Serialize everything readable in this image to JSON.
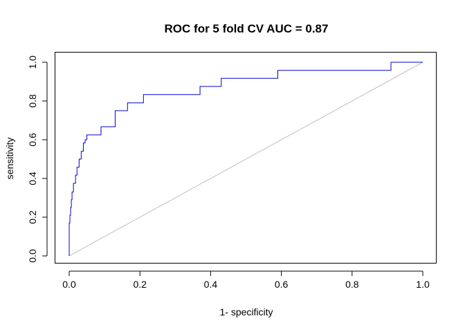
{
  "chart_data": {
    "type": "line",
    "title": "ROC for 5 fold CV  AUC = 0.87",
    "xlabel": "1- specificity",
    "ylabel": "sensitivity",
    "xlim": [
      0,
      1
    ],
    "ylim": [
      0,
      1
    ],
    "xticks": [
      "0.0",
      "0.2",
      "0.4",
      "0.6",
      "0.8",
      "1.0"
    ],
    "yticks": [
      "0.0",
      "0.2",
      "0.4",
      "0.6",
      "0.8",
      "1.0"
    ],
    "grid": false,
    "legend": "none",
    "series": [
      {
        "color": "#0000cc",
        "style": "step",
        "x": [
          0.0,
          0.0,
          0.002,
          0.002,
          0.004,
          0.004,
          0.006,
          0.006,
          0.008,
          0.008,
          0.012,
          0.012,
          0.018,
          0.018,
          0.022,
          0.022,
          0.028,
          0.028,
          0.034,
          0.034,
          0.04,
          0.04,
          0.045,
          0.045,
          0.05,
          0.05,
          0.09,
          0.09,
          0.13,
          0.13,
          0.165,
          0.165,
          0.21,
          0.21,
          0.37,
          0.37,
          0.43,
          0.43,
          0.59,
          0.59,
          0.91,
          0.91,
          1.0
        ],
        "y": [
          0.0,
          0.17,
          0.17,
          0.21,
          0.21,
          0.25,
          0.25,
          0.29,
          0.29,
          0.33,
          0.33,
          0.375,
          0.375,
          0.417,
          0.417,
          0.458,
          0.458,
          0.5,
          0.5,
          0.54,
          0.54,
          0.583,
          0.583,
          0.6,
          0.6,
          0.625,
          0.625,
          0.667,
          0.667,
          0.75,
          0.75,
          0.79,
          0.79,
          0.833,
          0.833,
          0.875,
          0.875,
          0.917,
          0.917,
          0.958,
          0.958,
          1.0,
          1.0
        ]
      },
      {
        "color": "#bebebe",
        "style": "line",
        "x": [
          0,
          1
        ],
        "y": [
          0,
          1
        ]
      }
    ]
  }
}
